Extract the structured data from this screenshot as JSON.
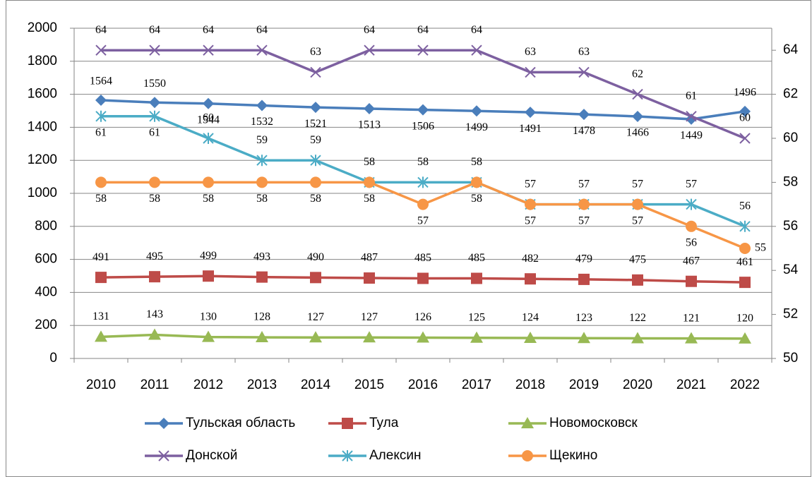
{
  "chart_data": {
    "type": "line",
    "categories": [
      "2010",
      "2011",
      "2012",
      "2013",
      "2014",
      "2015",
      "2016",
      "2017",
      "2018",
      "2019",
      "2020",
      "2021",
      "2022"
    ],
    "ylim": [
      0,
      2000
    ],
    "yticks": [
      0,
      200,
      400,
      600,
      800,
      1000,
      1200,
      1400,
      1600,
      1800,
      2000
    ],
    "y2lim": [
      50,
      65
    ],
    "y2ticks": [
      50,
      52,
      54,
      56,
      58,
      60,
      62,
      64
    ],
    "grid": true,
    "legend": "bottom",
    "series": [
      {
        "name": "Тульская область",
        "color": "#4a7ebb",
        "marker": "diamond",
        "values": [
          1564,
          1550,
          1544,
          1532,
          1521,
          1513,
          1506,
          1499,
          1491,
          1478,
          1466,
          1449,
          1496
        ]
      },
      {
        "name": "Тула",
        "color": "#be4b48",
        "marker": "square",
        "values": [
          491,
          495,
          499,
          493,
          490,
          487,
          485,
          485,
          482,
          479,
          475,
          467,
          461
        ]
      },
      {
        "name": "Новомосковск",
        "color": "#98b954",
        "marker": "triangle",
        "values": [
          131,
          143,
          130,
          128,
          127,
          127,
          126,
          125,
          124,
          123,
          122,
          121,
          120
        ]
      },
      {
        "name": "Донской",
        "color": "#7d60a0",
        "marker": "x",
        "axis": "y2",
        "values": [
          64,
          64,
          64,
          64,
          63,
          64,
          64,
          64,
          63,
          63,
          62,
          61,
          60
        ]
      },
      {
        "name": "Алексин",
        "color": "#4bacc6",
        "marker": "star",
        "axis": "y2",
        "values": [
          61,
          61,
          60,
          59,
          59,
          58,
          58,
          58,
          57,
          57,
          57,
          57,
          56
        ]
      },
      {
        "name": "Щекино",
        "color": "#f79646",
        "marker": "circle",
        "axis": "y2",
        "values": [
          58,
          58,
          58,
          58,
          58,
          58,
          57,
          58,
          57,
          57,
          57,
          56,
          55
        ]
      }
    ]
  }
}
